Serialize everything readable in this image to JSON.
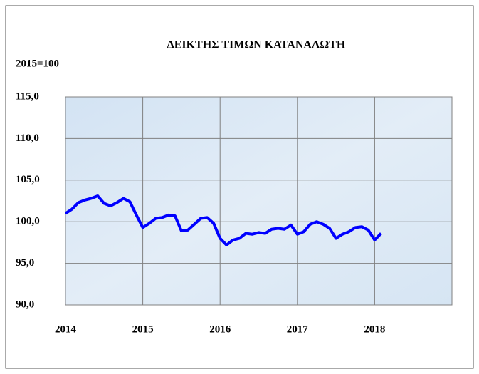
{
  "chart_data": {
    "type": "line",
    "title": "ΔΕΙΚΤΗΣ ΤΙΜΩΝ ΚΑΤΑΝΑΛΩΤΗ",
    "subtitle": "2015=100",
    "x": [
      2014,
      2014.083,
      2014.167,
      2014.25,
      2014.333,
      2014.417,
      2014.5,
      2014.583,
      2014.667,
      2014.75,
      2014.833,
      2014.917,
      2015,
      2015.083,
      2015.167,
      2015.25,
      2015.333,
      2015.417,
      2015.5,
      2015.583,
      2015.667,
      2015.75,
      2015.833,
      2015.917,
      2016,
      2016.083,
      2016.167,
      2016.25,
      2016.333,
      2016.417,
      2016.5,
      2016.583,
      2016.667,
      2016.75,
      2016.833,
      2016.917,
      2017,
      2017.083,
      2017.167,
      2017.25,
      2017.333,
      2017.417,
      2017.5,
      2017.583,
      2017.667,
      2017.75,
      2017.833,
      2017.917,
      2018,
      2018.083
    ],
    "series": [
      {
        "color": "#0000ff",
        "values": [
          101.0,
          101.5,
          102.3,
          102.6,
          102.8,
          103.1,
          102.2,
          101.9,
          102.3,
          102.8,
          102.4,
          100.8,
          99.3,
          99.8,
          100.4,
          100.5,
          100.8,
          100.7,
          98.9,
          99.0,
          99.7,
          100.4,
          100.5,
          99.8,
          98.0,
          97.2,
          97.8,
          98.0,
          98.6,
          98.5,
          98.7,
          98.6,
          99.1,
          99.2,
          99.1,
          99.6,
          98.5,
          98.8,
          99.7,
          100.0,
          99.7,
          99.2,
          98.0,
          98.5,
          98.8,
          99.3,
          99.4,
          99.0,
          97.8,
          98.6
        ]
      }
    ],
    "xlim": [
      2014,
      2019
    ],
    "xticks": [
      2014,
      2015,
      2016,
      2017,
      2018
    ],
    "ylim": [
      90,
      115
    ],
    "yticks": [
      {
        "value": 90,
        "label": "90,0"
      },
      {
        "value": 95,
        "label": "95,0"
      },
      {
        "value": 100,
        "label": "100,0"
      },
      {
        "value": 105,
        "label": "105,0"
      },
      {
        "value": 110,
        "label": "110,0"
      },
      {
        "value": 115,
        "label": "115,0"
      }
    ],
    "grid": true
  }
}
